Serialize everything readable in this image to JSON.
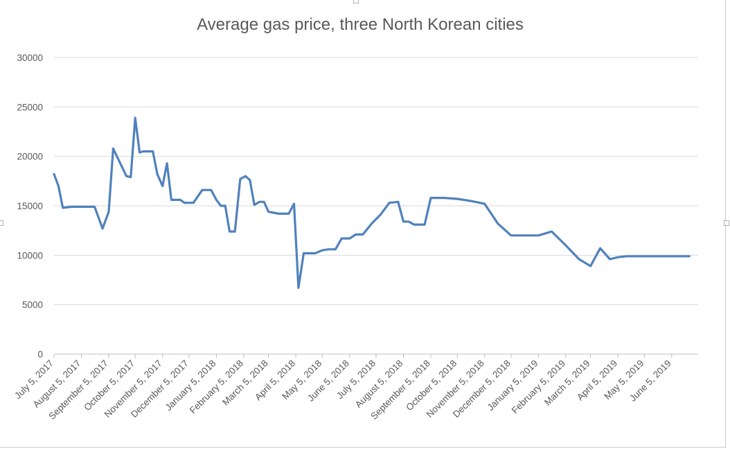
{
  "chart_data": {
    "type": "line",
    "title": "Average gas price, three North Korean cities",
    "xlabel": "",
    "ylabel": "",
    "ylim": [
      0,
      30000
    ],
    "yticks": [
      0,
      5000,
      10000,
      15000,
      20000,
      25000,
      30000
    ],
    "grid": true,
    "legend": "none",
    "line_color": "#4f81bd",
    "x_tick_labels": [
      "July 5, 2017",
      "August 5, 2017",
      "September 5, 2017",
      "October 5, 2017",
      "November 5, 2017",
      "December 5, 2017",
      "January 5, 2018",
      "February 5, 2018",
      "March 5, 2018",
      "April 5, 2018",
      "May 5, 2018",
      "June 5, 2018",
      "July 5, 2018",
      "August 5, 2018",
      "September 5, 2018",
      "October 5, 2018",
      "November 5, 2018",
      "December 5, 2018",
      "January 5, 2019",
      "February 5, 2019",
      "March 5, 2019",
      "April 5, 2019",
      "May 5, 2019",
      "June 5, 2019"
    ],
    "x": [
      "2017-07-05",
      "2017-07-10",
      "2017-07-15",
      "2017-07-25",
      "2017-08-10",
      "2017-08-20",
      "2017-08-29",
      "2017-09-05",
      "2017-09-10",
      "2017-09-25",
      "2017-09-30",
      "2017-10-05",
      "2017-10-10",
      "2017-10-14",
      "2017-10-20",
      "2017-10-25",
      "2017-10-30",
      "2017-11-05",
      "2017-11-10",
      "2017-11-15",
      "2017-11-20",
      "2017-11-25",
      "2017-11-30",
      "2017-12-05",
      "2017-12-10",
      "2017-12-20",
      "2017-12-30",
      "2018-01-05",
      "2018-01-10",
      "2018-01-15",
      "2018-01-20",
      "2018-01-26",
      "2018-02-01",
      "2018-02-07",
      "2018-02-12",
      "2018-02-17",
      "2018-02-23",
      "2018-02-28",
      "2018-03-05",
      "2018-03-11",
      "2018-03-17",
      "2018-03-22",
      "2018-03-28",
      "2018-04-03",
      "2018-04-08",
      "2018-04-14",
      "2018-04-20",
      "2018-04-27",
      "2018-05-05",
      "2018-05-12",
      "2018-05-20",
      "2018-05-27",
      "2018-06-05",
      "2018-06-12",
      "2018-06-20",
      "2018-06-30",
      "2018-07-10",
      "2018-07-20",
      "2018-07-30",
      "2018-08-05",
      "2018-08-11",
      "2018-08-17",
      "2018-08-23",
      "2018-08-29",
      "2018-09-05",
      "2018-09-20",
      "2018-10-05",
      "2018-10-20",
      "2018-11-05",
      "2018-11-20",
      "2018-12-05",
      "2018-12-15",
      "2018-12-29",
      "2019-01-05",
      "2019-01-20",
      "2019-02-05",
      "2019-02-20",
      "2019-03-05",
      "2019-03-16",
      "2019-03-27",
      "2019-04-05",
      "2019-04-15",
      "2019-04-29",
      "2019-05-05",
      "2019-05-12",
      "2019-05-18",
      "2019-05-25",
      "2019-06-01",
      "2019-06-12",
      "2019-06-25"
    ],
    "series": [
      {
        "name": "",
        "values": [
          18200,
          17000,
          14800,
          14900,
          14900,
          14900,
          12700,
          14400,
          20800,
          18000,
          17900,
          23900,
          20400,
          20500,
          20500,
          20500,
          18200,
          17000,
          19300,
          15600,
          15600,
          15600,
          15300,
          15300,
          15300,
          16600,
          16600,
          15600,
          15000,
          15000,
          12400,
          12400,
          17700,
          18000,
          17600,
          15100,
          15400,
          15400,
          14400,
          14300,
          14200,
          14200,
          14200,
          15200,
          6700,
          10200,
          10200,
          10200,
          10500,
          10600,
          10600,
          11700,
          11700,
          12100,
          12100,
          13200,
          14100,
          15300,
          15400,
          13400,
          13400,
          13100,
          13100,
          13100,
          15800,
          15800,
          15700,
          15500,
          15200,
          13200,
          12000,
          12000,
          12000,
          12000,
          12400,
          11000,
          9600,
          8900,
          10700,
          9600,
          9800,
          9900,
          9900,
          9900,
          9900,
          9900,
          9900,
          9900,
          9900,
          9900
        ]
      }
    ]
  }
}
